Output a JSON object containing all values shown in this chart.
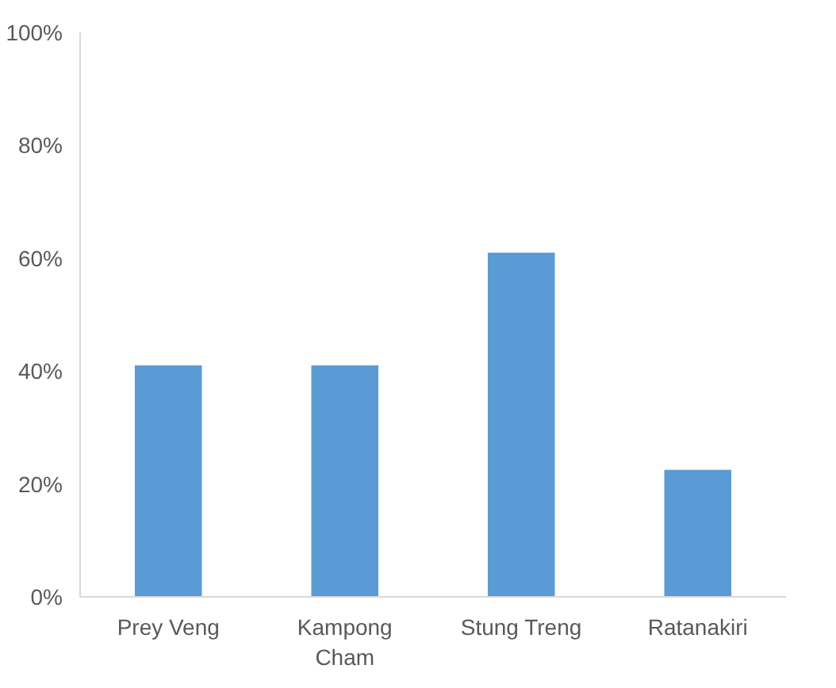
{
  "chart_data": {
    "type": "bar",
    "categories": [
      "Prey Veng",
      "Kampong\nCham",
      "Stung Treng",
      "Ratanakiri"
    ],
    "values": [
      41,
      41,
      61,
      22.5
    ],
    "color": "#5b9bd5",
    "ylim": [
      0,
      100
    ],
    "yticks": [
      {
        "value": 0,
        "label": "0%"
      },
      {
        "value": 20,
        "label": "20%"
      },
      {
        "value": 40,
        "label": "40%"
      },
      {
        "value": 60,
        "label": "60%"
      },
      {
        "value": 80,
        "label": "80%"
      },
      {
        "value": 100,
        "label": "100%"
      }
    ],
    "grid": false
  }
}
